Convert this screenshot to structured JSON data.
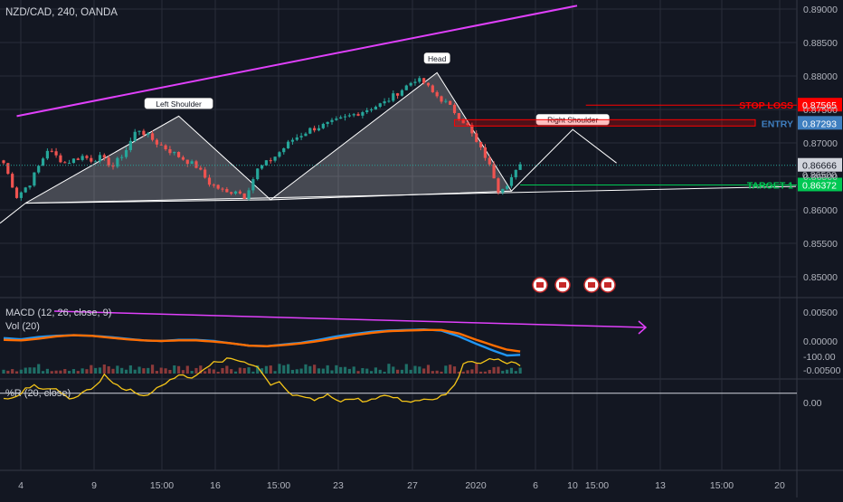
{
  "symbol_header": "NZD/CAD, 240, OANDA",
  "macd_header": "MACD (12, 26, close, 9)",
  "vol_header": "Vol (20)",
  "wr_header": "%R (20, close)",
  "colors": {
    "background": "#131722",
    "grid": "#2a2e39",
    "bull": "#26a69a",
    "bear": "#ef5350",
    "trendline": "#e040fb",
    "pattern": "#ffffff",
    "macd": "#2196f3",
    "signal": "#ff6d00",
    "wr": "#f5c518",
    "stop": "#ff0000",
    "entry": "#3f7fc0",
    "target": "#00c853"
  },
  "chart_data": [
    {
      "type": "candlestick",
      "title": "NZD/CAD, 240, OANDA",
      "x_tick_labels": [
        "4",
        "9",
        "15:00",
        "16",
        "15:00",
        "23",
        "27",
        "2020",
        "6",
        "10",
        "15:00",
        "13",
        "15:00",
        "20"
      ],
      "y_tick_labels": [
        "0.89000",
        "0.88500",
        "0.88000",
        "0.87500",
        "0.87000",
        "0.86500",
        "0.86000",
        "0.85500",
        "0.85000"
      ],
      "ylim": [
        0.8465,
        0.8905
      ],
      "close_anchors": [
        [
          0,
          0.867
        ],
        [
          3,
          0.862
        ],
        [
          6,
          0.864
        ],
        [
          10,
          0.869
        ],
        [
          14,
          0.867
        ],
        [
          18,
          0.868
        ],
        [
          20,
          0.8675
        ],
        [
          22,
          0.8678
        ],
        [
          25,
          0.8665
        ],
        [
          28,
          0.869
        ],
        [
          30,
          0.8715
        ],
        [
          31,
          0.872
        ],
        [
          35,
          0.87
        ],
        [
          40,
          0.868
        ],
        [
          44,
          0.8665
        ],
        [
          47,
          0.864
        ],
        [
          51,
          0.8625
        ],
        [
          53,
          0.863
        ],
        [
          55,
          0.862
        ],
        [
          58,
          0.866
        ],
        [
          62,
          0.868
        ],
        [
          66,
          0.8705
        ],
        [
          70,
          0.872
        ],
        [
          75,
          0.873
        ],
        [
          79,
          0.874
        ],
        [
          83,
          0.875
        ],
        [
          87,
          0.876
        ],
        [
          91,
          0.878
        ],
        [
          94,
          0.8795
        ],
        [
          96,
          0.879
        ],
        [
          98,
          0.8775
        ],
        [
          101,
          0.876
        ],
        [
          104,
          0.874
        ],
        [
          106,
          0.8725
        ],
        [
          108,
          0.87
        ],
        [
          110,
          0.868
        ],
        [
          112,
          0.865
        ],
        [
          113,
          0.863
        ],
        [
          115,
          0.864
        ],
        [
          118,
          0.8665
        ]
      ],
      "annotations": [
        {
          "label": "Left Shoulder",
          "price": 0.874
        },
        {
          "label": "Head",
          "price": 0.8805
        },
        {
          "label": "Right Shoulder",
          "price": 0.872
        }
      ],
      "levels": [
        {
          "name": "STOP LOSS",
          "value": "0.87565",
          "price": 0.87565,
          "color": "#ff0000"
        },
        {
          "name": "ENTRY",
          "value": "0.87293",
          "price": 0.87293,
          "color": "#3f7fc0"
        },
        {
          "name": "TARGET 1",
          "value": "0.86372",
          "price": 0.86372,
          "color": "#00c853"
        }
      ],
      "last_price": "0.86666",
      "hidden_price": "0.86500"
    },
    {
      "type": "line",
      "title": "MACD (12, 26, close, 9)",
      "y_tick_labels": [
        "0.00500",
        "0.00000",
        "-0.00500"
      ],
      "ylim": [
        -0.0055,
        0.0055
      ],
      "macd_anchors": [
        [
          0,
          0.0005
        ],
        [
          4,
          0.0003
        ],
        [
          8,
          0.0007
        ],
        [
          12,
          0.0009
        ],
        [
          16,
          0.001
        ],
        [
          20,
          0.0009
        ],
        [
          24,
          0.0007
        ],
        [
          28,
          0.0004
        ],
        [
          32,
          0.0001
        ],
        [
          36,
          0.0
        ],
        [
          40,
          0.0002
        ],
        [
          44,
          0.0002
        ],
        [
          48,
          0.0
        ],
        [
          52,
          -0.0004
        ],
        [
          56,
          -0.0008
        ],
        [
          60,
          -0.0009
        ],
        [
          64,
          -0.0006
        ],
        [
          68,
          -0.0003
        ],
        [
          72,
          0.0002
        ],
        [
          76,
          0.0008
        ],
        [
          80,
          0.0012
        ],
        [
          84,
          0.0016
        ],
        [
          88,
          0.0018
        ],
        [
          92,
          0.0019
        ],
        [
          96,
          0.002
        ],
        [
          100,
          0.0018
        ],
        [
          104,
          0.0008
        ],
        [
          108,
          -0.0005
        ],
        [
          112,
          -0.0017
        ],
        [
          115,
          -0.0025
        ],
        [
          118,
          -0.0024
        ]
      ],
      "signal_anchors": [
        [
          0,
          0.0002
        ],
        [
          4,
          0.0001
        ],
        [
          8,
          0.0004
        ],
        [
          12,
          0.0008
        ],
        [
          16,
          0.001
        ],
        [
          20,
          0.0009
        ],
        [
          24,
          0.0006
        ],
        [
          28,
          0.0003
        ],
        [
          32,
          0.0001
        ],
        [
          36,
          0.0
        ],
        [
          40,
          0.0001
        ],
        [
          44,
          0.0001
        ],
        [
          48,
          -0.0001
        ],
        [
          52,
          -0.0004
        ],
        [
          56,
          -0.0008
        ],
        [
          60,
          -0.0009
        ],
        [
          64,
          -0.0007
        ],
        [
          68,
          -0.0004
        ],
        [
          72,
          0.0
        ],
        [
          76,
          0.0005
        ],
        [
          80,
          0.001
        ],
        [
          84,
          0.0014
        ],
        [
          88,
          0.0017
        ],
        [
          92,
          0.0018
        ],
        [
          96,
          0.0019
        ],
        [
          100,
          0.0019
        ],
        [
          104,
          0.0013
        ],
        [
          108,
          0.0002
        ],
        [
          112,
          -0.0008
        ],
        [
          115,
          -0.0015
        ],
        [
          118,
          -0.0018
        ]
      ]
    },
    {
      "type": "line",
      "title": "%R (20, close)",
      "y_tick_labels": [
        "0.00",
        "-100.00"
      ],
      "ylim": [
        -120,
        10
      ],
      "anchors": [
        [
          0,
          -5
        ],
        [
          3,
          -15
        ],
        [
          5,
          -30
        ],
        [
          7,
          -40
        ],
        [
          9,
          -25
        ],
        [
          12,
          -30
        ],
        [
          15,
          -10
        ],
        [
          18,
          -20
        ],
        [
          21,
          -35
        ],
        [
          23,
          -60
        ],
        [
          25,
          -40
        ],
        [
          28,
          -30
        ],
        [
          31,
          -15
        ],
        [
          33,
          -20
        ],
        [
          36,
          -35
        ],
        [
          38,
          -50
        ],
        [
          40,
          -60
        ],
        [
          43,
          -55
        ],
        [
          46,
          -75
        ],
        [
          49,
          -90
        ],
        [
          52,
          -95
        ],
        [
          55,
          -85
        ],
        [
          58,
          -75
        ],
        [
          61,
          -35
        ],
        [
          63,
          -45
        ],
        [
          65,
          -20
        ],
        [
          68,
          -10
        ],
        [
          71,
          -5
        ],
        [
          74,
          -15
        ],
        [
          77,
          -5
        ],
        [
          80,
          -8
        ],
        [
          83,
          -3
        ],
        [
          86,
          -10
        ],
        [
          88,
          -15
        ],
        [
          91,
          -5
        ],
        [
          94,
          -3
        ],
        [
          96,
          -8
        ],
        [
          99,
          -10
        ],
        [
          101,
          -20
        ],
        [
          103,
          -40
        ],
        [
          105,
          -80
        ],
        [
          107,
          -90
        ],
        [
          110,
          -88
        ],
        [
          112,
          -95
        ],
        [
          114,
          -90
        ],
        [
          116,
          -85
        ],
        [
          118,
          -82
        ]
      ]
    }
  ]
}
